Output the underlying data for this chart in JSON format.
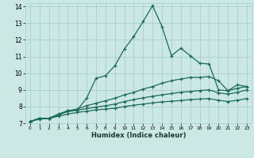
{
  "xlabel": "Humidex (Indice chaleur)",
  "bg_color": "#cce8e4",
  "grid_color": "#aacfcb",
  "line_color": "#1a6b5a",
  "xlim": [
    -0.5,
    23.5
  ],
  "ylim": [
    7,
    14.2
  ],
  "yticks": [
    7,
    8,
    9,
    10,
    11,
    12,
    13,
    14
  ],
  "xticks": [
    0,
    1,
    2,
    3,
    4,
    5,
    6,
    7,
    8,
    9,
    10,
    11,
    12,
    13,
    14,
    15,
    16,
    17,
    18,
    19,
    20,
    21,
    22,
    23
  ],
  "lines": [
    {
      "x": [
        0,
        1,
        2,
        3,
        4,
        5,
        6,
        7,
        8,
        9,
        10,
        11,
        12,
        13,
        14,
        15,
        16,
        17,
        18,
        19,
        20,
        21,
        22,
        23
      ],
      "y": [
        7.1,
        7.3,
        7.3,
        7.55,
        7.75,
        7.8,
        8.5,
        9.7,
        9.85,
        10.45,
        11.45,
        12.2,
        13.1,
        14.05,
        12.8,
        11.05,
        11.5,
        11.05,
        10.6,
        10.55,
        9.0,
        8.95,
        9.3,
        9.2
      ]
    },
    {
      "x": [
        0,
        1,
        2,
        3,
        4,
        5,
        6,
        7,
        8,
        9,
        10,
        11,
        12,
        13,
        14,
        15,
        16,
        17,
        18,
        19,
        20,
        21,
        22,
        23
      ],
      "y": [
        7.1,
        7.3,
        7.3,
        7.5,
        7.75,
        7.85,
        8.05,
        8.2,
        8.35,
        8.5,
        8.7,
        8.85,
        9.05,
        9.2,
        9.4,
        9.55,
        9.65,
        9.75,
        9.75,
        9.8,
        9.55,
        8.95,
        9.1,
        9.2
      ]
    },
    {
      "x": [
        0,
        1,
        2,
        3,
        4,
        5,
        6,
        7,
        8,
        9,
        10,
        11,
        12,
        13,
        14,
        15,
        16,
        17,
        18,
        19,
        20,
        21,
        22,
        23
      ],
      "y": [
        7.1,
        7.3,
        7.3,
        7.5,
        7.7,
        7.78,
        7.88,
        7.97,
        8.05,
        8.15,
        8.3,
        8.42,
        8.52,
        8.62,
        8.7,
        8.78,
        8.86,
        8.9,
        8.96,
        9.0,
        8.82,
        8.75,
        8.85,
        9.0
      ]
    },
    {
      "x": [
        0,
        1,
        2,
        3,
        4,
        5,
        6,
        7,
        8,
        9,
        10,
        11,
        12,
        13,
        14,
        15,
        16,
        17,
        18,
        19,
        20,
        21,
        22,
        23
      ],
      "y": [
        7.1,
        7.25,
        7.28,
        7.42,
        7.55,
        7.65,
        7.72,
        7.8,
        7.85,
        7.9,
        8.0,
        8.08,
        8.15,
        8.22,
        8.28,
        8.32,
        8.36,
        8.42,
        8.45,
        8.48,
        8.38,
        8.3,
        8.38,
        8.48
      ]
    }
  ]
}
